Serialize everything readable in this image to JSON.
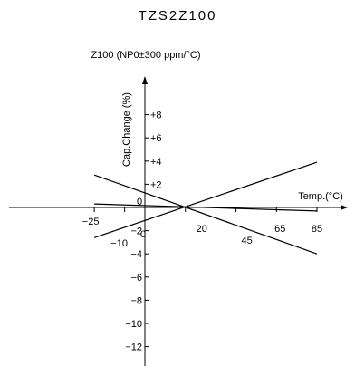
{
  "page_title": "TZS2Z100",
  "chart_data": {
    "type": "line",
    "title": "Z100 (NP0±300 ppm/°C)",
    "xlabel": "Temp.(°C)",
    "ylabel": "Cap.Change (%)",
    "xlim": [
      -25,
      85
    ],
    "ylim": [
      -12,
      8
    ],
    "origin_label": "0",
    "x_ticks": [
      -25,
      -10,
      0,
      20,
      45,
      65,
      85
    ],
    "x_tick_labels": [
      "−25",
      "−10",
      "0",
      "20",
      "45",
      "65",
      "85"
    ],
    "y_ticks": [
      8,
      6,
      4,
      2,
      -2,
      -4,
      -6,
      -8,
      -10,
      -12
    ],
    "y_tick_labels": [
      "+8",
      "+6",
      "+4",
      "+2",
      "−2",
      "−4",
      "−6",
      "−8",
      "−10",
      "−12"
    ],
    "series": [
      {
        "x": [
          -25,
          85
        ],
        "y": [
          2.8,
          -4.0
        ]
      },
      {
        "x": [
          -25,
          85
        ],
        "y": [
          -2.6,
          3.9
        ]
      },
      {
        "x": [
          -25,
          85
        ],
        "y": [
          0.3,
          -0.3
        ]
      }
    ],
    "grid": false,
    "legend": "none"
  }
}
